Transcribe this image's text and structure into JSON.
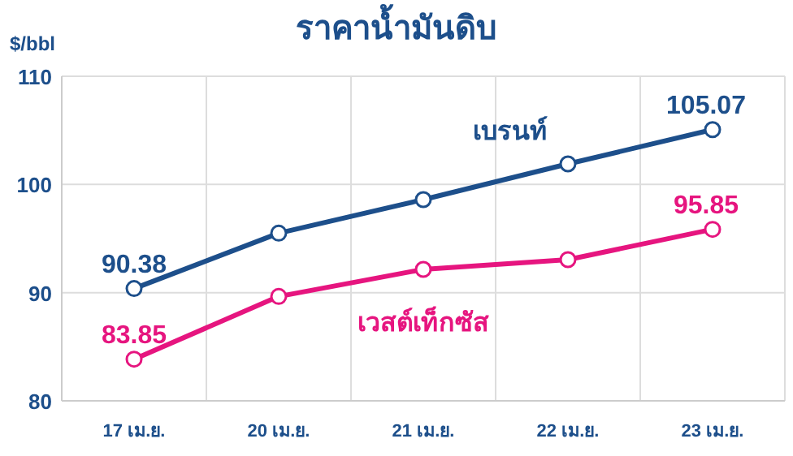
{
  "chart_data": {
    "type": "line",
    "title": "ราคาน้ำมันดิบ",
    "ylabel": "$/bbl",
    "categories": [
      "17 เม.ย.",
      "20 เม.ย.",
      "21 เม.ย.",
      "22 เม.ย.",
      "23 เม.ย."
    ],
    "series": [
      {
        "name": "เบรนท์",
        "color": "#1d4f8b",
        "values": [
          90.38,
          95.5,
          98.6,
          101.9,
          105.07
        ],
        "value_labels": [
          "90.38",
          null,
          null,
          null,
          "105.07"
        ]
      },
      {
        "name": "เวสต์เท็กซัส",
        "color": "#e6157f",
        "values": [
          83.85,
          89.65,
          92.15,
          93.05,
          95.85
        ],
        "value_labels": [
          "83.85",
          null,
          null,
          null,
          "95.85"
        ]
      }
    ],
    "ylim": [
      80,
      110
    ],
    "yticks": [
      80,
      90,
      100,
      110
    ],
    "grid": true,
    "legend": false,
    "marker": "circle",
    "line_style": "solid"
  }
}
